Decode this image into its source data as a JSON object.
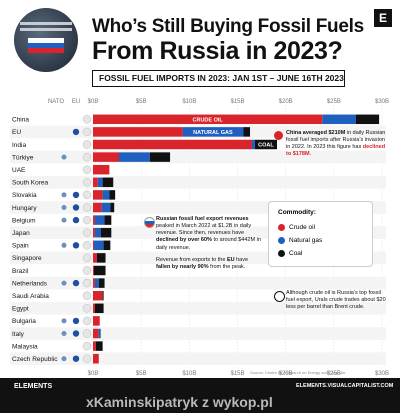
{
  "title_line1": "Who’s Still Buying Fossil Fuels",
  "title_line2": "From Russia in 2023?",
  "subtitle": "FOSSIL FUEL IMPORTS IN 2023: JAN 1ST – JUNE 16TH 2023",
  "logo_letter": "E",
  "column_headers": {
    "nato": "NATO",
    "eu": "EU"
  },
  "chart_data": {
    "type": "bar",
    "orientation": "horizontal",
    "stacked": true,
    "title": "From Russia in 2023?",
    "subtitle": "FOSSIL FUEL IMPORTS IN 2023: JAN 1ST – JUNE 16TH 2023",
    "xlim": [
      0,
      30
    ],
    "x_ticks": [
      "$0B",
      "$5B",
      "$10B",
      "$15B",
      "$20B",
      "$25B",
      "$30B"
    ],
    "categories": [
      "China",
      "EU",
      "India",
      "Türkiye",
      "UAE",
      "South Korea",
      "Slovakia",
      "Hungary",
      "Belgium",
      "Japan",
      "Spain",
      "Singapore",
      "Brazil",
      "Netherlands",
      "Saudi Arabia",
      "Egypt",
      "Bulgaria",
      "Italy",
      "Malaysia",
      "Czech Republic"
    ],
    "nato": [
      false,
      false,
      false,
      true,
      false,
      false,
      true,
      true,
      true,
      false,
      true,
      false,
      false,
      true,
      false,
      false,
      true,
      true,
      false,
      true
    ],
    "eu": [
      false,
      true,
      false,
      false,
      false,
      false,
      true,
      true,
      true,
      false,
      true,
      false,
      false,
      true,
      false,
      false,
      true,
      true,
      false,
      true
    ],
    "series": [
      {
        "name": "Crude oil",
        "color": "#d9242b",
        "values": [
          23.8,
          9.3,
          16.5,
          2.7,
          1.7,
          0.5,
          1.0,
          0.9,
          0.2,
          0.2,
          0.1,
          0.4,
          0.1,
          0.2,
          1.0,
          0.2,
          0.7,
          0.6,
          0.3,
          0.6
        ]
      },
      {
        "name": "Natural gas",
        "color": "#1f5fbf",
        "values": [
          3.5,
          6.3,
          0.3,
          3.2,
          0.0,
          0.5,
          0.7,
          0.9,
          1.0,
          0.6,
          1.0,
          0.0,
          0.0,
          0.4,
          0.0,
          0.0,
          0.0,
          0.2,
          0.0,
          0.0
        ]
      },
      {
        "name": "Coal",
        "color": "#111111",
        "values": [
          2.4,
          0.7,
          2.3,
          2.1,
          0.0,
          1.1,
          0.6,
          0.4,
          0.7,
          1.1,
          0.7,
          0.9,
          1.2,
          0.6,
          0.1,
          0.9,
          0.0,
          0.0,
          0.7,
          0.0
        ]
      }
    ],
    "bar_labels": {
      "China": "CRUDE OIL",
      "EU": "NATURAL GAS",
      "India": "COAL"
    },
    "legend": {
      "title": "Commodity:",
      "items": [
        "Crude oil",
        "Natural gas",
        "Coal"
      ],
      "position": "right"
    }
  },
  "notes": {
    "china": {
      "text_a": "China averaged $210M",
      "text_b": " in daily Russian fossil fuel imports after Russia’s invasion in 2022. In 2023 this figure has ",
      "text_c": "declined to $178M",
      "text_d": "."
    },
    "revenue1": {
      "text_a": "Russian fossil fuel export revenues",
      "text_b": " peaked in March 2022 at $1.2B in daily revenue. Since then, revenues have ",
      "text_c": "declined by over 60%",
      "text_d": " to around $442M in daily revenue."
    },
    "revenue2": {
      "text_a": "Revenue from exports to the ",
      "text_b": "EU",
      "text_c": " have ",
      "text_d": "fallen by nearly 90%",
      "text_e": " from the peak."
    },
    "urals": {
      "text": "Although crude oil is Russia’s top fossil fuel export, Urals crude trades about $20 less per barrel than Brent crude."
    }
  },
  "source": "Source: Centre for Research on Energy and Clean Air",
  "footer": {
    "brand": "ELEMENTS",
    "site": "ELEMENTS.VISUALCAPITALIST.COM",
    "watermark": "xKaminskipatryk z wykop.pl"
  }
}
